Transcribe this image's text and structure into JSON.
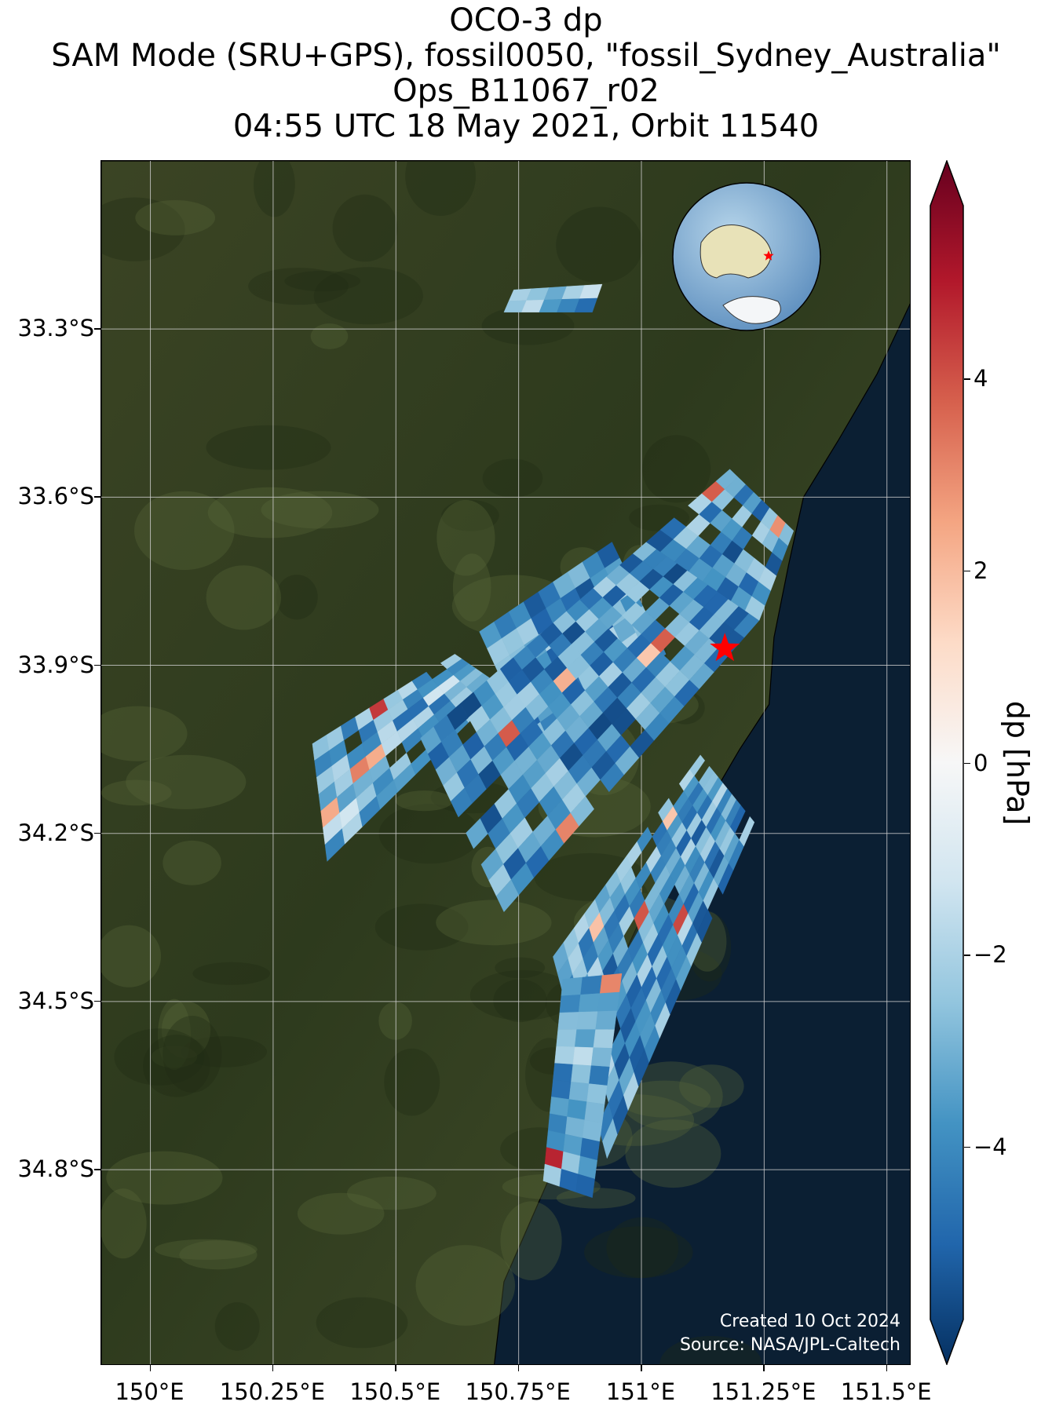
{
  "title": {
    "line1": "OCO-3 dp",
    "line2": "SAM Mode (SRU+GPS), fossil0050, \"fossil_Sydney_Australia\"",
    "line3": "Ops_B11067_r02",
    "line4": "04:55 UTC 18 May 2021, Orbit 11540"
  },
  "credits": {
    "created": "Created 10 Oct 2024",
    "source": "Source: NASA/JPL-Caltech"
  },
  "colors": {
    "land_dark": "#2e3a1e",
    "land_mid": "#4b5230",
    "ocean": "#0b1f33",
    "target_marker": "#ff0000",
    "gridline": "#d0d0d0"
  },
  "chart_data": {
    "type": "heatmap",
    "map_projection": "geographic (lat/lon)",
    "lon_range": [
      149.9,
      151.55
    ],
    "lat_range": [
      -35.15,
      -33.0
    ],
    "lon_ticks": [
      150.0,
      150.25,
      150.5,
      150.75,
      151.0,
      151.25,
      151.5
    ],
    "lon_tick_labels": [
      "150°E",
      "150.25°E",
      "150.5°E",
      "150.75°E",
      "151°E",
      "151.25°E",
      "151.5°E"
    ],
    "lat_ticks": [
      -33.3,
      -33.6,
      -33.9,
      -34.2,
      -34.5,
      -34.8
    ],
    "lat_tick_labels": [
      "33.3°S",
      "33.6°S",
      "33.9°S",
      "34.2°S",
      "34.5°S",
      "34.8°S"
    ],
    "grid": true,
    "target": {
      "name": "fossil_Sydney_Australia",
      "lon": 151.17,
      "lat": -33.87,
      "marker": "red-star"
    },
    "colorbar": {
      "label": "dp [hPa]",
      "colormap": "RdBu_r",
      "vmin": -5.8,
      "vmax": 5.8,
      "extend": "both",
      "ticks": [
        -4,
        -2,
        0,
        2,
        4
      ],
      "tick_labels": [
        "−4",
        "−2",
        "0",
        "2",
        "4"
      ]
    },
    "swaths": [
      {
        "name": "northern-fragment",
        "corners_lonlat": [
          [
            150.74,
            -33.23
          ],
          [
            150.92,
            -33.22
          ],
          [
            150.9,
            -33.27
          ],
          [
            150.72,
            -33.27
          ]
        ],
        "mean_dp": -3.0
      },
      {
        "name": "western-strip",
        "corners_lonlat": [
          [
            150.33,
            -34.04
          ],
          [
            150.62,
            -33.88
          ],
          [
            150.72,
            -33.94
          ],
          [
            150.36,
            -34.25
          ]
        ],
        "mean_dp": -2.8
      },
      {
        "name": "main-swath-1",
        "corners_lonlat": [
          [
            150.67,
            -33.84
          ],
          [
            150.94,
            -33.68
          ],
          [
            151.05,
            -33.88
          ],
          [
            150.78,
            -34.05
          ]
        ],
        "mean_dp": -3.4
      },
      {
        "name": "main-swath-2",
        "corners_lonlat": [
          [
            150.55,
            -34.03
          ],
          [
            151.01,
            -33.68
          ],
          [
            151.24,
            -33.82
          ],
          [
            150.72,
            -34.34
          ]
        ],
        "mean_dp": -3.6
      },
      {
        "name": "main-swath-3",
        "corners_lonlat": [
          [
            151.01,
            -33.68
          ],
          [
            151.18,
            -33.55
          ],
          [
            151.31,
            -33.66
          ],
          [
            151.24,
            -33.82
          ]
        ],
        "mean_dp": -3.5
      },
      {
        "name": "southern-swath",
        "corners_lonlat": [
          [
            150.82,
            -34.42
          ],
          [
            151.12,
            -34.06
          ],
          [
            151.23,
            -34.18
          ],
          [
            150.93,
            -34.78
          ]
        ],
        "mean_dp": -3.3
      },
      {
        "name": "southern-tail",
        "corners_lonlat": [
          [
            150.84,
            -34.46
          ],
          [
            150.96,
            -34.45
          ],
          [
            150.9,
            -34.85
          ],
          [
            150.8,
            -34.82
          ]
        ],
        "mean_dp": -3.0
      }
    ]
  }
}
